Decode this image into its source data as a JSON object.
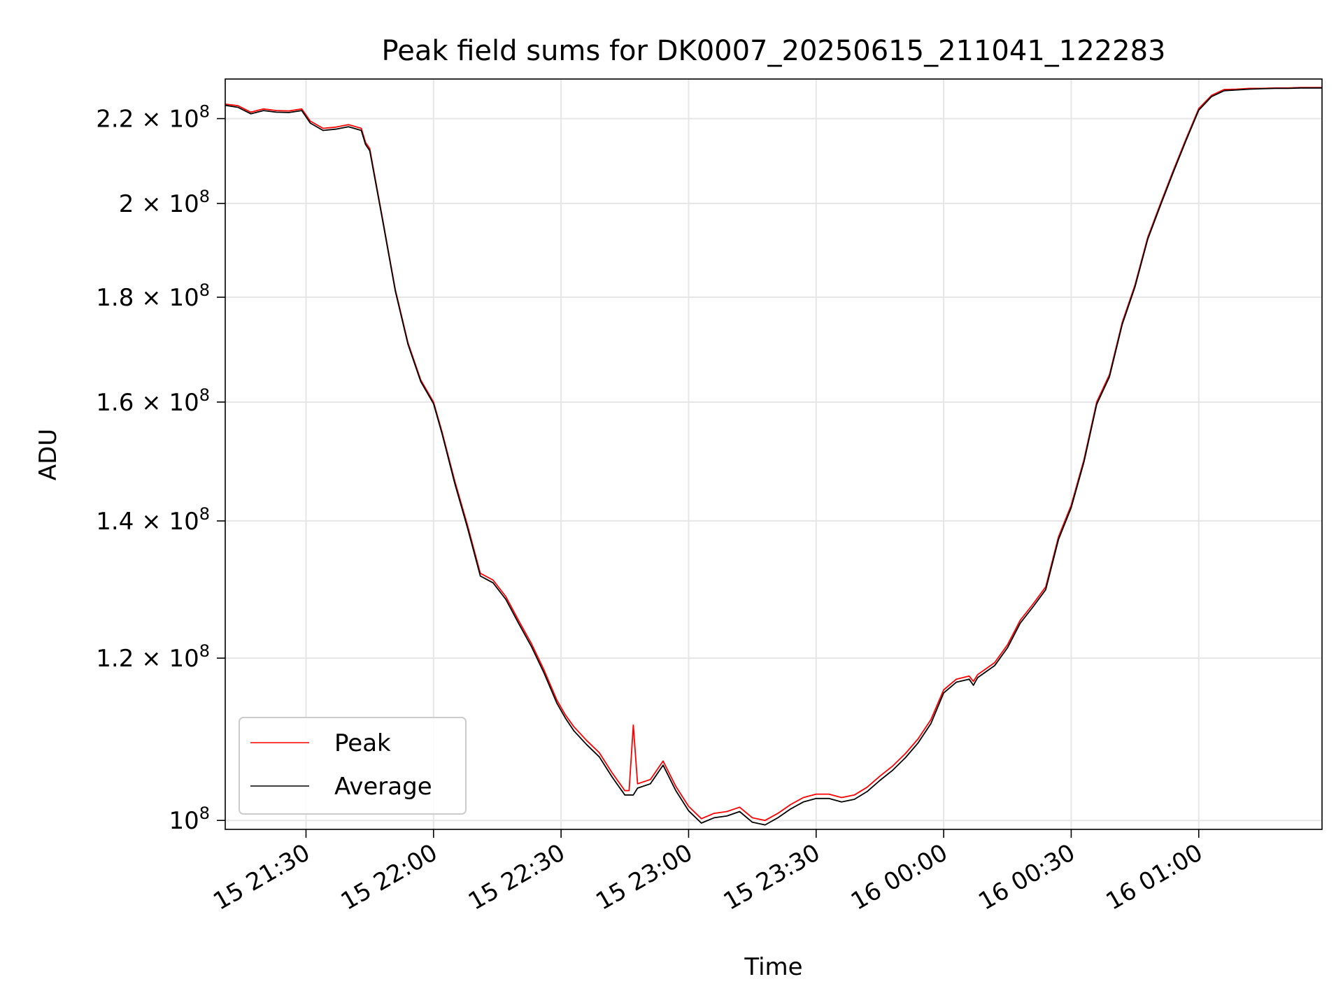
{
  "chart_data": {
    "type": "line",
    "title": "Peak field sums for DK0007_20250615_211041_122283",
    "xlabel": "Time",
    "ylabel": "ADU",
    "yscale": "log",
    "xlim": [
      "2025-06-15 21:11",
      "2025-06-16 01:29"
    ],
    "ylim": [
      99000000,
      230000000
    ],
    "x_ticks": [
      {
        "value": "2025-06-15 21:30",
        "label": "15 21:30"
      },
      {
        "value": "2025-06-15 22:00",
        "label": "15 22:00"
      },
      {
        "value": "2025-06-15 22:30",
        "label": "15 22:30"
      },
      {
        "value": "2025-06-15 23:00",
        "label": "15 23:00"
      },
      {
        "value": "2025-06-15 23:30",
        "label": "15 23:30"
      },
      {
        "value": "2025-06-16 00:00",
        "label": "16 00:00"
      },
      {
        "value": "2025-06-16 00:30",
        "label": "16 00:30"
      },
      {
        "value": "2025-06-16 01:00",
        "label": "16 01:00"
      }
    ],
    "y_ticks": [
      {
        "value": 100000000,
        "mantissa": "",
        "exponent": "8"
      },
      {
        "value": 120000000,
        "mantissa": "1.2",
        "exponent": "8"
      },
      {
        "value": 140000000,
        "mantissa": "1.4",
        "exponent": "8"
      },
      {
        "value": 160000000,
        "mantissa": "1.6",
        "exponent": "8"
      },
      {
        "value": 180000000,
        "mantissa": "1.8",
        "exponent": "8"
      },
      {
        "value": 200000000,
        "mantissa": "2",
        "exponent": "8"
      },
      {
        "value": 220000000,
        "mantissa": "2.2",
        "exponent": "8"
      }
    ],
    "tick_times_sign": "×",
    "tick_base": "10",
    "grid": true,
    "legend_position": "lower-left",
    "x": [
      "2025-06-15 21:11",
      "2025-06-15 21:14",
      "2025-06-15 21:17",
      "2025-06-15 21:20",
      "2025-06-15 21:23",
      "2025-06-15 21:26",
      "2025-06-15 21:29",
      "2025-06-15 21:31",
      "2025-06-15 21:34",
      "2025-06-15 21:37",
      "2025-06-15 21:40",
      "2025-06-15 21:43",
      "2025-06-15 21:44",
      "2025-06-15 21:45",
      "2025-06-15 21:48",
      "2025-06-15 21:51",
      "2025-06-15 21:54",
      "2025-06-15 21:57",
      "2025-06-15 22:00",
      "2025-06-15 22:02",
      "2025-06-15 22:05",
      "2025-06-15 22:08",
      "2025-06-15 22:11",
      "2025-06-15 22:14",
      "2025-06-15 22:17",
      "2025-06-15 22:20",
      "2025-06-15 22:23",
      "2025-06-15 22:26",
      "2025-06-15 22:29",
      "2025-06-15 22:31",
      "2025-06-15 22:33",
      "2025-06-15 22:36",
      "2025-06-15 22:39",
      "2025-06-15 22:42",
      "2025-06-15 22:45",
      "2025-06-15 22:46",
      "2025-06-15 22:47",
      "2025-06-15 22:48",
      "2025-06-15 22:51",
      "2025-06-15 22:54",
      "2025-06-15 22:57",
      "2025-06-15 23:00",
      "2025-06-15 23:03",
      "2025-06-15 23:06",
      "2025-06-15 23:09",
      "2025-06-15 23:12",
      "2025-06-15 23:15",
      "2025-06-15 23:18",
      "2025-06-15 23:21",
      "2025-06-15 23:24",
      "2025-06-15 23:27",
      "2025-06-15 23:30",
      "2025-06-15 23:33",
      "2025-06-15 23:36",
      "2025-06-15 23:39",
      "2025-06-15 23:42",
      "2025-06-15 23:45",
      "2025-06-15 23:48",
      "2025-06-15 23:51",
      "2025-06-15 23:54",
      "2025-06-15 23:57",
      "2025-06-16 00:00",
      "2025-06-16 00:03",
      "2025-06-16 00:06",
      "2025-06-16 00:07",
      "2025-06-16 00:08",
      "2025-06-16 00:10",
      "2025-06-16 00:12",
      "2025-06-16 00:15",
      "2025-06-16 00:18",
      "2025-06-16 00:21",
      "2025-06-16 00:24",
      "2025-06-16 00:27",
      "2025-06-16 00:30",
      "2025-06-16 00:33",
      "2025-06-16 00:36",
      "2025-06-16 00:39",
      "2025-06-16 00:42",
      "2025-06-16 00:45",
      "2025-06-16 00:48",
      "2025-06-16 00:51",
      "2025-06-16 00:54",
      "2025-06-16 00:57",
      "2025-06-16 01:00",
      "2025-06-16 01:03",
      "2025-06-16 01:06",
      "2025-06-16 01:09",
      "2025-06-16 01:12",
      "2025-06-16 01:15",
      "2025-06-16 01:18",
      "2025-06-16 01:21",
      "2025-06-16 01:24",
      "2025-06-16 01:27",
      "2025-06-16 01:29"
    ],
    "series": [
      {
        "name": "Peak",
        "color": "#ff0000",
        "values": [
          223600000,
          223200000,
          221600000,
          222400000,
          222000000,
          221900000,
          222400000,
          219400000,
          217600000,
          217900000,
          218500000,
          217600000,
          214200000,
          212700000,
          196600000,
          181600000,
          171000000,
          164000000,
          160000000,
          154700000,
          146400000,
          139300000,
          132000000,
          131000000,
          128600000,
          125200000,
          122000000,
          118400000,
          114500000,
          112600000,
          111100000,
          109400000,
          107900000,
          105500000,
          103400000,
          103400000,
          111300000,
          104200000,
          104700000,
          106900000,
          103900000,
          101600000,
          100200000,
          100800000,
          101000000,
          101500000,
          100300000,
          100000000,
          100800000,
          101800000,
          102600000,
          103000000,
          103000000,
          102600000,
          102900000,
          103800000,
          105100000,
          106300000,
          107800000,
          109600000,
          112000000,
          115800000,
          117200000,
          117600000,
          116900000,
          117800000,
          118600000,
          119400000,
          121800000,
          125200000,
          127500000,
          130000000,
          137500000,
          142500000,
          150000000,
          160000000,
          165000000,
          175000000,
          182500000,
          192500000,
          200000000,
          207500000,
          215000000,
          222500000,
          225800000,
          227300000,
          227400000,
          227600000,
          227600000,
          227700000,
          227700000,
          227800000,
          227800000,
          227800000
        ]
      },
      {
        "name": "Average",
        "color": "#000000",
        "values": [
          223300000,
          222800000,
          221200000,
          222000000,
          221600000,
          221500000,
          222000000,
          218900000,
          217100000,
          217400000,
          218000000,
          217100000,
          213700000,
          212200000,
          196300000,
          181300000,
          170700000,
          163700000,
          159700000,
          154400000,
          146000000,
          138900000,
          131600000,
          130600000,
          128200000,
          124800000,
          121600000,
          118000000,
          114100000,
          112200000,
          110600000,
          108900000,
          107400000,
          105000000,
          102900000,
          102900000,
          102900000,
          103700000,
          104200000,
          106400000,
          103400000,
          101100000,
          99700000,
          100300000,
          100500000,
          101000000,
          99800000,
          99500000,
          100300000,
          101300000,
          102100000,
          102500000,
          102500000,
          102100000,
          102400000,
          103300000,
          104600000,
          105800000,
          107300000,
          109100000,
          111500000,
          115400000,
          116800000,
          117200000,
          116400000,
          117400000,
          118200000,
          119000000,
          121400000,
          124800000,
          127100000,
          129600000,
          137100000,
          142100000,
          149600000,
          159600000,
          164600000,
          174600000,
          182100000,
          192100000,
          199600000,
          207100000,
          214600000,
          222100000,
          225500000,
          227000000,
          227200000,
          227400000,
          227500000,
          227600000,
          227600000,
          227700000,
          227700000,
          227700000
        ]
      }
    ]
  }
}
